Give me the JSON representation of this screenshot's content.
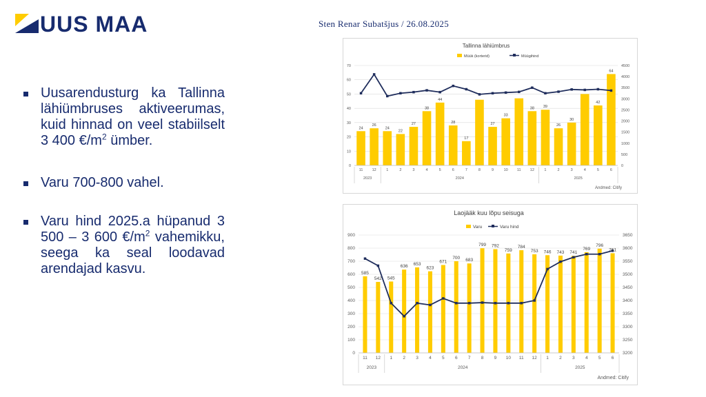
{
  "logo": {
    "text": "UUS MAA"
  },
  "author": "Sten Renar Subatšjus / 26.08.2025",
  "bullets": [
    {
      "pre": "Uusarendusturg ka Tallinna lähiümbruses aktiveerumas, kuid hinnad on veel stabiilselt 3 400 €/m",
      "sup": "2",
      "post": " ümber."
    },
    {
      "pre": "Varu 700-800 vahel.",
      "sup": "",
      "post": ""
    },
    {
      "pre": "Varu hind 2025.a hüpanud 3 500 – 3 600 €/m",
      "sup": "2",
      "post": " vahemikku, seega ka seal loodavad arendajad kasvu."
    }
  ],
  "colors": {
    "navy": "#172b6e",
    "bar": "#ffcc00",
    "line": "#1f2d5c",
    "grid": "#d9d9d9"
  },
  "chart_data": [
    {
      "type": "bar",
      "title": "Tallinna lähiümbrus",
      "legend": [
        "Müük (korterid)",
        "Müügihind"
      ],
      "legend_position": "top",
      "source": "Andmed: Citify",
      "categories": [
        "11",
        "12",
        "1",
        "2",
        "3",
        "4",
        "5",
        "6",
        "7",
        "8",
        "9",
        "10",
        "11",
        "12",
        "1",
        "2",
        "3",
        "4",
        "5",
        "6"
      ],
      "year_groups": [
        {
          "label": "2023",
          "span": 2
        },
        {
          "label": "2024",
          "span": 12
        },
        {
          "label": "2025",
          "span": 6
        }
      ],
      "series": [
        {
          "name": "Müük (korterid)",
          "type": "bar",
          "axis": "left",
          "values": [
            24,
            26,
            24,
            22,
            27,
            38,
            44,
            28,
            17,
            46,
            27,
            33,
            47,
            38,
            39,
            26,
            30,
            50,
            42,
            64
          ],
          "labels": [
            "24",
            "26",
            "24",
            "22",
            "27",
            "38",
            "44",
            "28",
            "17",
            "",
            "27",
            "33",
            "",
            "38",
            "39",
            "26",
            "30",
            "",
            "42",
            "64"
          ]
        },
        {
          "name": "Müügihind",
          "type": "line",
          "axis": "right",
          "values": [
            3250,
            4100,
            3120,
            3250,
            3300,
            3380,
            3300,
            3580,
            3430,
            3200,
            3250,
            3280,
            3310,
            3500,
            3250,
            3320,
            3420,
            3400,
            3430,
            3370
          ]
        }
      ],
      "y_left": {
        "min": 0,
        "max": 70,
        "ticks": [
          0,
          10,
          20,
          30,
          40,
          50,
          60,
          70
        ]
      },
      "y_right": {
        "min": 0,
        "max": 4500,
        "ticks": [
          0,
          500,
          1000,
          1500,
          2000,
          2500,
          3000,
          3500,
          4000,
          4500
        ]
      },
      "grid": true
    },
    {
      "type": "bar",
      "title": "Laojääk kuu lõpu seisuga",
      "legend": [
        "Varu",
        "Varu hind"
      ],
      "legend_position": "top",
      "source": "Andmed: Citify",
      "categories": [
        "11",
        "12",
        "1",
        "2",
        "3",
        "4",
        "5",
        "6",
        "7",
        "8",
        "9",
        "10",
        "11",
        "12",
        "1",
        "2",
        "3",
        "4",
        "5",
        "6"
      ],
      "year_groups": [
        {
          "label": "2023",
          "span": 2
        },
        {
          "label": "2024",
          "span": 12
        },
        {
          "label": "2025",
          "span": 6
        }
      ],
      "series": [
        {
          "name": "Varu",
          "type": "bar",
          "axis": "left",
          "values": [
            585,
            542,
            545,
            636,
            653,
            623,
            671,
            700,
            683,
            799,
            792,
            759,
            784,
            753,
            746,
            743,
            741,
            769,
            796,
            761
          ],
          "labels": [
            "585",
            "542",
            "545",
            "636",
            "653",
            "623",
            "671",
            "700",
            "683",
            "799",
            "792",
            "759",
            "784",
            "753",
            "746",
            "743",
            "741",
            "769",
            "796",
            "761"
          ]
        },
        {
          "name": "Varu hind",
          "type": "line",
          "axis": "right",
          "values": [
            3560,
            3533,
            3390,
            3340,
            3390,
            3383,
            3408,
            3390,
            3390,
            3392,
            3390,
            3390,
            3390,
            3400,
            3520,
            3548,
            3565,
            3577,
            3577,
            3590
          ]
        }
      ],
      "y_left": {
        "min": 0,
        "max": 900,
        "ticks": [
          0,
          100,
          200,
          300,
          400,
          500,
          600,
          700,
          800,
          900
        ]
      },
      "y_right": {
        "min": 3200,
        "max": 3650,
        "ticks": [
          3200,
          3250,
          3300,
          3350,
          3400,
          3450,
          3500,
          3550,
          3600,
          3650
        ]
      },
      "grid": true
    }
  ]
}
